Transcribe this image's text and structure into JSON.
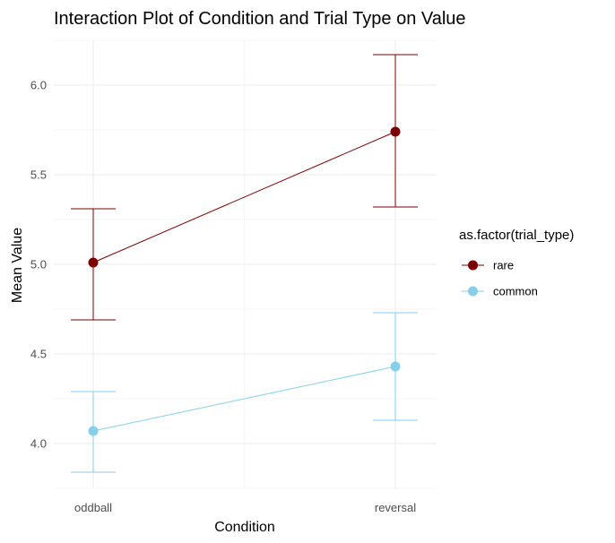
{
  "chart_data": {
    "type": "line",
    "title": "Interaction Plot of Condition and Trial Type on Value",
    "xlabel": "Condition",
    "ylabel": "Mean Value",
    "categories": [
      "oddball",
      "reversal"
    ],
    "ylim": [
      3.75,
      6.25
    ],
    "yticks": [
      4.0,
      4.5,
      5.0,
      5.5,
      6.0
    ],
    "ytick_labels": [
      "4.0",
      "4.5",
      "5.0",
      "5.5",
      "6.0"
    ],
    "grid": true,
    "legend": {
      "title": "as.factor(trial_type)",
      "position": "right"
    },
    "series": [
      {
        "name": "rare",
        "color": "#7b0000",
        "values": [
          5.01,
          5.74
        ],
        "lower": [
          4.69,
          5.32
        ],
        "upper": [
          5.31,
          6.17
        ]
      },
      {
        "name": "common",
        "color": "#87ceeb",
        "values": [
          4.07,
          4.43
        ],
        "lower": [
          3.84,
          4.13
        ],
        "upper": [
          4.29,
          4.73
        ]
      }
    ]
  }
}
